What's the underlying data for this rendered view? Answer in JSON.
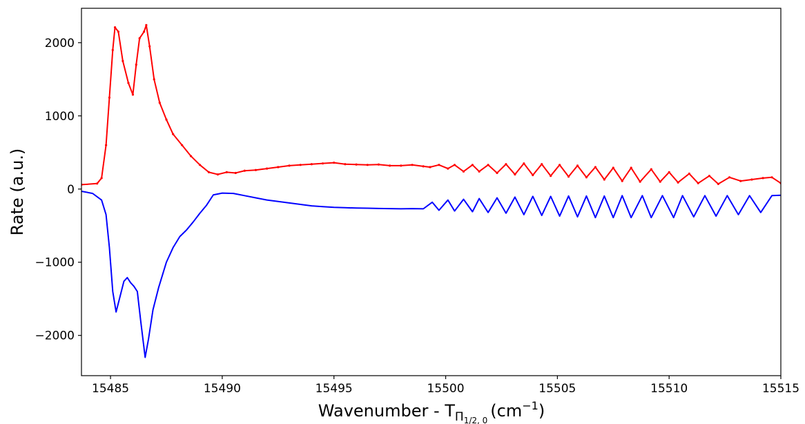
{
  "chart_data": {
    "type": "line",
    "title": "",
    "xlabel": {
      "prefix": "Wavenumber - T",
      "subscript_main": "Π",
      "subscript_sub": "1/2, 0",
      "unit": "(cm",
      "unit_exp": "−1",
      "unit_close": ")"
    },
    "ylabel": "Rate (a.u.)",
    "xlim": [
      15483.7,
      15515
    ],
    "ylim": [
      -2550,
      2470
    ],
    "xticks": [
      15485,
      15490,
      15495,
      15500,
      15505,
      15510,
      15515
    ],
    "yticks": [
      -2000,
      -1000,
      0,
      1000,
      2000
    ],
    "ytick_labels": [
      "−2000",
      "−1000",
      "0",
      "1000",
      "2000"
    ],
    "grid": false,
    "series": [
      {
        "color": "#ff0000",
        "markers": true,
        "points": [
          [
            15483.7,
            60
          ],
          [
            15484.4,
            75
          ],
          [
            15484.6,
            150
          ],
          [
            15484.8,
            600
          ],
          [
            15484.95,
            1250
          ],
          [
            15485.1,
            1900
          ],
          [
            15485.2,
            2210
          ],
          [
            15485.35,
            2150
          ],
          [
            15485.55,
            1750
          ],
          [
            15485.8,
            1450
          ],
          [
            15486.0,
            1290
          ],
          [
            15486.15,
            1700
          ],
          [
            15486.3,
            2060
          ],
          [
            15486.5,
            2150
          ],
          [
            15486.6,
            2240
          ],
          [
            15486.75,
            1950
          ],
          [
            15486.95,
            1500
          ],
          [
            15487.2,
            1180
          ],
          [
            15487.5,
            950
          ],
          [
            15487.8,
            750
          ],
          [
            15488.2,
            600
          ],
          [
            15488.6,
            450
          ],
          [
            15489.0,
            330
          ],
          [
            15489.4,
            230
          ],
          [
            15489.8,
            200
          ],
          [
            15490.2,
            230
          ],
          [
            15490.6,
            220
          ],
          [
            15491.0,
            250
          ],
          [
            15491.5,
            260
          ],
          [
            15492.0,
            280
          ],
          [
            15492.5,
            300
          ],
          [
            15493.0,
            320
          ],
          [
            15493.5,
            330
          ],
          [
            15494.0,
            340
          ],
          [
            15494.5,
            350
          ],
          [
            15495.0,
            360
          ],
          [
            15495.5,
            340
          ],
          [
            15496.0,
            335
          ],
          [
            15496.5,
            330
          ],
          [
            15497.0,
            335
          ],
          [
            15497.5,
            320
          ],
          [
            15498.0,
            320
          ],
          [
            15498.5,
            330
          ],
          [
            15499.0,
            310
          ],
          [
            15499.3,
            300
          ],
          [
            15499.7,
            330
          ],
          [
            15500.1,
            280
          ],
          [
            15500.4,
            330
          ],
          [
            15500.8,
            240
          ],
          [
            15501.2,
            330
          ],
          [
            15501.5,
            240
          ],
          [
            15501.9,
            330
          ],
          [
            15502.3,
            220
          ],
          [
            15502.7,
            340
          ],
          [
            15503.1,
            200
          ],
          [
            15503.5,
            350
          ],
          [
            15503.9,
            190
          ],
          [
            15504.3,
            340
          ],
          [
            15504.7,
            180
          ],
          [
            15505.1,
            330
          ],
          [
            15505.5,
            170
          ],
          [
            15505.9,
            320
          ],
          [
            15506.3,
            160
          ],
          [
            15506.7,
            300
          ],
          [
            15507.1,
            130
          ],
          [
            15507.5,
            290
          ],
          [
            15507.9,
            110
          ],
          [
            15508.3,
            290
          ],
          [
            15508.7,
            100
          ],
          [
            15509.2,
            270
          ],
          [
            15509.6,
            100
          ],
          [
            15510.0,
            230
          ],
          [
            15510.4,
            90
          ],
          [
            15510.9,
            210
          ],
          [
            15511.3,
            80
          ],
          [
            15511.8,
            180
          ],
          [
            15512.2,
            70
          ],
          [
            15512.7,
            160
          ],
          [
            15513.2,
            110
          ],
          [
            15513.7,
            130
          ],
          [
            15514.2,
            150
          ],
          [
            15514.6,
            160
          ],
          [
            15515.0,
            80
          ]
        ]
      },
      {
        "color": "#0000ff",
        "markers": false,
        "points": [
          [
            15483.7,
            -30
          ],
          [
            15484.2,
            -60
          ],
          [
            15484.6,
            -150
          ],
          [
            15484.8,
            -350
          ],
          [
            15484.95,
            -800
          ],
          [
            15485.1,
            -1400
          ],
          [
            15485.25,
            -1680
          ],
          [
            15485.4,
            -1500
          ],
          [
            15485.6,
            -1260
          ],
          [
            15485.75,
            -1210
          ],
          [
            15485.9,
            -1280
          ],
          [
            15486.05,
            -1330
          ],
          [
            15486.2,
            -1400
          ],
          [
            15486.35,
            -1800
          ],
          [
            15486.55,
            -2300
          ],
          [
            15486.7,
            -2050
          ],
          [
            15486.9,
            -1650
          ],
          [
            15487.15,
            -1350
          ],
          [
            15487.5,
            -1000
          ],
          [
            15487.8,
            -800
          ],
          [
            15488.1,
            -650
          ],
          [
            15488.4,
            -560
          ],
          [
            15488.7,
            -450
          ],
          [
            15489.0,
            -330
          ],
          [
            15489.3,
            -220
          ],
          [
            15489.6,
            -80
          ],
          [
            15490.0,
            -55
          ],
          [
            15490.5,
            -60
          ],
          [
            15491.0,
            -90
          ],
          [
            15491.5,
            -120
          ],
          [
            15492.0,
            -150
          ],
          [
            15492.5,
            -170
          ],
          [
            15493.0,
            -190
          ],
          [
            15493.5,
            -210
          ],
          [
            15494.0,
            -230
          ],
          [
            15494.5,
            -240
          ],
          [
            15495.0,
            -250
          ],
          [
            15495.5,
            -255
          ],
          [
            15496.0,
            -260
          ],
          [
            15496.5,
            -262
          ],
          [
            15497.0,
            -265
          ],
          [
            15497.5,
            -268
          ],
          [
            15498.0,
            -270
          ],
          [
            15498.5,
            -268
          ],
          [
            15499.0,
            -270
          ],
          [
            15499.4,
            -180
          ],
          [
            15499.7,
            -290
          ],
          [
            15500.1,
            -150
          ],
          [
            15500.4,
            -300
          ],
          [
            15500.8,
            -140
          ],
          [
            15501.2,
            -310
          ],
          [
            15501.5,
            -130
          ],
          [
            15501.9,
            -320
          ],
          [
            15502.3,
            -120
          ],
          [
            15502.7,
            -330
          ],
          [
            15503.1,
            -110
          ],
          [
            15503.5,
            -350
          ],
          [
            15503.9,
            -100
          ],
          [
            15504.3,
            -360
          ],
          [
            15504.7,
            -100
          ],
          [
            15505.1,
            -370
          ],
          [
            15505.5,
            -95
          ],
          [
            15505.9,
            -380
          ],
          [
            15506.3,
            -95
          ],
          [
            15506.7,
            -390
          ],
          [
            15507.1,
            -95
          ],
          [
            15507.5,
            -390
          ],
          [
            15507.9,
            -90
          ],
          [
            15508.3,
            -390
          ],
          [
            15508.8,
            -90
          ],
          [
            15509.2,
            -390
          ],
          [
            15509.7,
            -90
          ],
          [
            15510.2,
            -390
          ],
          [
            15510.6,
            -90
          ],
          [
            15511.1,
            -380
          ],
          [
            15511.6,
            -90
          ],
          [
            15512.1,
            -370
          ],
          [
            15512.6,
            -90
          ],
          [
            15513.1,
            -350
          ],
          [
            15513.6,
            -90
          ],
          [
            15514.1,
            -320
          ],
          [
            15514.6,
            -90
          ],
          [
            15515.0,
            -85
          ]
        ]
      }
    ]
  }
}
